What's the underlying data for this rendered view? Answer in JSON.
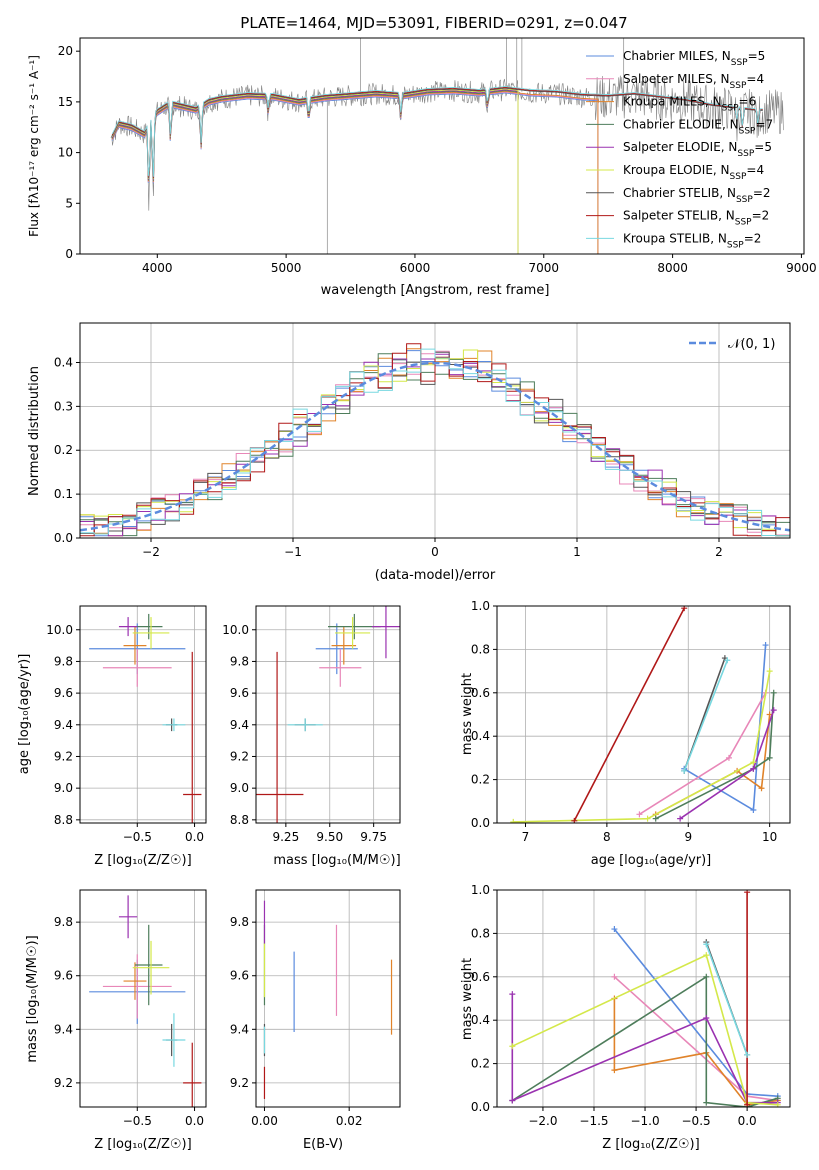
{
  "figure_title": "PLATE=1464, MJD=53091, FIBERID=0291, z=0.047",
  "colors": {
    "Chabrier MILES": "#5b8bde",
    "Salpeter MILES": "#e887b8",
    "Kroupa MILES": "#e0832a",
    "Chabrier ELODIE": "#4e7d5b",
    "Salpeter ELODIE": "#9a32b0",
    "Kroupa ELODIE": "#d4e84a",
    "Chabrier STELIB": "#555555",
    "Salpeter STELIB": "#b01818",
    "Kroupa STELIB": "#78d8e0",
    "observed": "#808080"
  },
  "chart_data": [
    {
      "type": "line",
      "xlabel": "wavelength [Angstrom, rest frame]",
      "ylabel": "Flux [fλ10⁻¹⁷ erg cm⁻² s⁻¹ A⁻¹]",
      "xlim": [
        3400,
        9020
      ],
      "ylim": [
        0,
        21.3
      ],
      "xticks": [
        "4000",
        "5000",
        "6000",
        "7000",
        "8000",
        "9000"
      ],
      "yticks": [
        "0",
        "5",
        "10",
        "15",
        "20"
      ],
      "grid": false,
      "legend_position": "right",
      "series": [
        {
          "name": "Chabrier MILES, N_SSP=5",
          "label_main": "Chabrier MILES, N",
          "label_sub": "SSP",
          "label_tail": "=5",
          "color": "#5b8bde"
        },
        {
          "name": "Salpeter MILES, N_SSP=4",
          "label_main": "Salpeter MILES, N",
          "label_sub": "SSP",
          "label_tail": "=4",
          "color": "#e887b8"
        },
        {
          "name": "Kroupa MILES, N_SSP=6",
          "label_main": "Kroupa MILES, N",
          "label_sub": "SSP",
          "label_tail": "=6",
          "color": "#e0832a"
        },
        {
          "name": "Chabrier ELODIE, N_SSP=7",
          "label_main": "Chabrier ELODIE, N",
          "label_sub": "SSP",
          "label_tail": "=7",
          "color": "#4e7d5b"
        },
        {
          "name": "Salpeter ELODIE, N_SSP=5",
          "label_main": "Salpeter ELODIE, N",
          "label_sub": "SSP",
          "label_tail": "=5",
          "color": "#9a32b0"
        },
        {
          "name": "Kroupa ELODIE, N_SSP=4",
          "label_main": "Kroupa ELODIE, N",
          "label_sub": "SSP",
          "label_tail": "=4",
          "color": "#d4e84a"
        },
        {
          "name": "Chabrier STELIB, N_SSP=2",
          "label_main": "Chabrier STELIB, N",
          "label_sub": "SSP",
          "label_tail": "=2",
          "color": "#555555"
        },
        {
          "name": "Salpeter STELIB, N_SSP=2",
          "label_main": "Salpeter STELIB, N",
          "label_sub": "SSP",
          "label_tail": "=2",
          "color": "#b01818"
        },
        {
          "name": "Kroupa STELIB, N_SSP=2",
          "label_main": "Kroupa STELIB, N",
          "label_sub": "SSP",
          "label_tail": "=2",
          "color": "#78d8e0"
        }
      ],
      "continuum": {
        "x": [
          3650,
          3700,
          3800,
          3900,
          4000,
          4100,
          4200,
          4300,
          4400,
          4500,
          4700,
          4900,
          5100,
          5300,
          5500,
          5700,
          5900,
          6100,
          6300,
          6500,
          6700,
          6900,
          7100,
          7300,
          7500,
          7700,
          7900,
          8100,
          8300,
          8500,
          8650
        ],
        "y": [
          11.5,
          12.8,
          12.5,
          11.8,
          14.0,
          14.8,
          14.5,
          14.2,
          15.0,
          15.3,
          15.6,
          15.5,
          15.0,
          15.4,
          15.6,
          15.8,
          15.6,
          16.0,
          16.1,
          15.9,
          16.2,
          15.9,
          15.8,
          15.5,
          15.4,
          15.6,
          15.3,
          15.0,
          14.5,
          14.2,
          14.0
        ]
      },
      "model_ends": {
        "MILES": 7420,
        "ELODIE": 6800,
        "STELIB": 8700
      },
      "absorption_lines": [
        {
          "x": 3934,
          "y": 4.5
        },
        {
          "x": 3968,
          "y": 5.5
        },
        {
          "x": 4102,
          "y": 10.5
        },
        {
          "x": 4340,
          "y": 10.2
        },
        {
          "x": 4861,
          "y": 13.8
        },
        {
          "x": 5175,
          "y": 12.8
        },
        {
          "x": 5890,
          "y": 13.4
        },
        {
          "x": 6563,
          "y": 14.2
        },
        {
          "x": 8498,
          "y": 12.5
        },
        {
          "x": 8542,
          "y": 11.8
        },
        {
          "x": 8662,
          "y": 12.0
        }
      ]
    },
    {
      "type": "histogram",
      "xlabel": "(data-model)/error",
      "ylabel": "Normed distribution",
      "xlim": [
        -2.5,
        2.5
      ],
      "ylim": [
        0,
        0.49
      ],
      "xticks": [
        "−2",
        "−1",
        "0",
        "1",
        "2"
      ],
      "yticks": [
        "0.0",
        "0.1",
        "0.2",
        "0.3",
        "0.4"
      ],
      "grid": true,
      "legend_label": "𝒩(0, 1)",
      "reference_curve": "standard normal density",
      "bin_width": 0.1,
      "series": [
        {
          "name": "Chabrier MILES",
          "color": "#5b8bde"
        },
        {
          "name": "Salpeter MILES",
          "color": "#e887b8"
        },
        {
          "name": "Kroupa MILES",
          "color": "#e0832a"
        },
        {
          "name": "Chabrier ELODIE",
          "color": "#4e7d5b"
        },
        {
          "name": "Salpeter ELODIE",
          "color": "#9a32b0"
        },
        {
          "name": "Kroupa ELODIE",
          "color": "#d4e84a"
        },
        {
          "name": "Chabrier STELIB",
          "color": "#555555"
        },
        {
          "name": "Salpeter STELIB",
          "color": "#b01818"
        },
        {
          "name": "Kroupa STELIB",
          "color": "#78d8e0"
        }
      ]
    },
    {
      "type": "errorbar",
      "xlabel": "Z [log₁₀(Z/Z☉)]",
      "ylabel": "age  [log₁₀(age/yr)]",
      "xlim": [
        -1.0,
        0.1
      ],
      "ylim": [
        8.78,
        10.15
      ],
      "xticks": [
        "−0.5",
        "0.0"
      ],
      "yticks": [
        "8.8",
        "9.0",
        "9.2",
        "9.4",
        "9.6",
        "9.8",
        "10.0"
      ],
      "grid": true,
      "points": [
        {
          "color": "#5b8bde",
          "x": -0.5,
          "y": 9.88,
          "xerr": 0.42,
          "yerr": 0.16
        },
        {
          "color": "#e887b8",
          "x": -0.5,
          "y": 9.76,
          "xerr": 0.3,
          "yerr": 0.12
        },
        {
          "color": "#e0832a",
          "x": -0.52,
          "y": 9.9,
          "xerr": 0.1,
          "yerr": 0.12
        },
        {
          "color": "#4e7d5b",
          "x": -0.4,
          "y": 10.02,
          "xerr": 0.12,
          "yerr": 0.08
        },
        {
          "color": "#9a32b0",
          "x": -0.58,
          "y": 10.02,
          "xerr": 0.08,
          "yerr": 0.06
        },
        {
          "color": "#d4e84a",
          "x": -0.38,
          "y": 9.98,
          "xerr": 0.16,
          "yerr": 0.1
        },
        {
          "color": "#555555",
          "x": -0.2,
          "y": 9.4,
          "xerr": 0.05,
          "yerr": 0.04
        },
        {
          "color": "#b01818",
          "x": -0.02,
          "y": 8.96,
          "xerr": 0.08,
          "yerr": 0.9
        },
        {
          "color": "#78d8e0",
          "x": -0.18,
          "y": 9.4,
          "xerr": 0.1,
          "yerr": 0.04
        }
      ]
    },
    {
      "type": "errorbar",
      "xlabel": "mass [log₁₀(M/M☉)]",
      "ylabel": "",
      "xlim": [
        9.08,
        9.9
      ],
      "ylim": [
        8.78,
        10.15
      ],
      "xticks": [
        "9.25",
        "9.50",
        "9.75"
      ],
      "yticks": [
        "8.8",
        "9.0",
        "9.2",
        "9.4",
        "9.6",
        "9.8",
        "10.0"
      ],
      "grid": true,
      "points": [
        {
          "color": "#5b8bde",
          "x": 9.54,
          "y": 9.88,
          "xerr": 0.12,
          "yerr": 0.16
        },
        {
          "color": "#e887b8",
          "x": 9.56,
          "y": 9.76,
          "xerr": 0.12,
          "yerr": 0.12
        },
        {
          "color": "#e0832a",
          "x": 9.58,
          "y": 9.9,
          "xerr": 0.07,
          "yerr": 0.12
        },
        {
          "color": "#4e7d5b",
          "x": 9.64,
          "y": 10.02,
          "xerr": 0.15,
          "yerr": 0.08
        },
        {
          "color": "#9a32b0",
          "x": 9.82,
          "y": 10.02,
          "xerr": 0.08,
          "yerr": 0.2
        },
        {
          "color": "#d4e84a",
          "x": 9.63,
          "y": 9.98,
          "xerr": 0.1,
          "yerr": 0.1
        },
        {
          "color": "#555555",
          "x": 9.36,
          "y": 9.4,
          "xerr": 0.06,
          "yerr": 0.04
        },
        {
          "color": "#b01818",
          "x": 9.2,
          "y": 8.96,
          "xerr": 0.15,
          "yerr": 0.9
        },
        {
          "color": "#78d8e0",
          "x": 9.36,
          "y": 9.4,
          "xerr": 0.1,
          "yerr": 0.04
        }
      ]
    },
    {
      "type": "line",
      "xlabel": "age  [log₁₀(age/yr)]",
      "ylabel": "mass weight",
      "xlim": [
        6.65,
        10.25
      ],
      "ylim": [
        0,
        1.0
      ],
      "xticks": [
        "7",
        "8",
        "9",
        "10"
      ],
      "yticks": [
        "0.0",
        "0.2",
        "0.4",
        "0.6",
        "0.8",
        "1.0"
      ],
      "grid": true,
      "series": [
        {
          "color": "#5b8bde",
          "x": [
            8.95,
            9.8,
            9.95
          ],
          "y": [
            0.25,
            0.06,
            0.82
          ]
        },
        {
          "color": "#e887b8",
          "x": [
            8.4,
            9.5,
            9.95
          ],
          "y": [
            0.04,
            0.3,
            0.6
          ]
        },
        {
          "color": "#e0832a",
          "x": [
            8.6,
            9.6,
            9.9,
            10.0
          ],
          "y": [
            0.04,
            0.24,
            0.16,
            0.5
          ]
        },
        {
          "color": "#4e7d5b",
          "x": [
            8.6,
            9.8,
            10.0,
            10.05
          ],
          "y": [
            0.02,
            0.25,
            0.3,
            0.6
          ]
        },
        {
          "color": "#9a32b0",
          "x": [
            8.9,
            9.8,
            10.05
          ],
          "y": [
            0.02,
            0.25,
            0.52
          ]
        },
        {
          "color": "#d4e84a",
          "x": [
            6.85,
            8.5,
            9.8,
            10.0
          ],
          "y": [
            0.005,
            0.02,
            0.28,
            0.7
          ]
        },
        {
          "color": "#555555",
          "x": [
            8.95,
            9.45
          ],
          "y": [
            0.24,
            0.76
          ]
        },
        {
          "color": "#b01818",
          "x": [
            7.6,
            8.95
          ],
          "y": [
            0.01,
            0.99
          ]
        },
        {
          "color": "#78d8e0",
          "x": [
            8.95,
            9.48
          ],
          "y": [
            0.24,
            0.75
          ]
        }
      ]
    },
    {
      "type": "errorbar",
      "xlabel": "Z [log₁₀(Z/Z☉)]",
      "ylabel": "mass [log₁₀(M/M☉)]",
      "xlim": [
        -1.0,
        0.1
      ],
      "ylim": [
        9.11,
        9.92
      ],
      "xticks": [
        "−0.5",
        "0.0"
      ],
      "yticks": [
        "9.2",
        "9.4",
        "9.6",
        "9.8"
      ],
      "grid": true,
      "points": [
        {
          "color": "#5b8bde",
          "x": -0.5,
          "y": 9.54,
          "xerr": 0.42,
          "yerr": 0.12
        },
        {
          "color": "#e887b8",
          "x": -0.5,
          "y": 9.56,
          "xerr": 0.3,
          "yerr": 0.12
        },
        {
          "color": "#e0832a",
          "x": -0.52,
          "y": 9.58,
          "xerr": 0.1,
          "yerr": 0.07
        },
        {
          "color": "#4e7d5b",
          "x": -0.4,
          "y": 9.64,
          "xerr": 0.12,
          "yerr": 0.15
        },
        {
          "color": "#9a32b0",
          "x": -0.58,
          "y": 9.82,
          "xerr": 0.08,
          "yerr": 0.08
        },
        {
          "color": "#d4e84a",
          "x": -0.38,
          "y": 9.63,
          "xerr": 0.16,
          "yerr": 0.1
        },
        {
          "color": "#555555",
          "x": -0.2,
          "y": 9.36,
          "xerr": 0.05,
          "yerr": 0.06
        },
        {
          "color": "#b01818",
          "x": -0.02,
          "y": 9.2,
          "xerr": 0.08,
          "yerr": 0.15
        },
        {
          "color": "#78d8e0",
          "x": -0.18,
          "y": 9.36,
          "xerr": 0.1,
          "yerr": 0.1
        }
      ]
    },
    {
      "type": "errorbar",
      "xlabel": "E(B-V)",
      "ylabel": "",
      "xlim": [
        -0.002,
        0.032
      ],
      "ylim": [
        9.11,
        9.92
      ],
      "xticks": [
        "0.00",
        "0.02"
      ],
      "yticks": [
        "9.2",
        "9.4",
        "9.6",
        "9.8"
      ],
      "grid": true,
      "points": [
        {
          "color": "#5b8bde",
          "x": 0.007,
          "y": 9.54,
          "xerr": 0,
          "yerr": 0.15
        },
        {
          "color": "#e887b8",
          "x": 0.017,
          "y": 9.62,
          "xerr": 0,
          "yerr": 0.17
        },
        {
          "color": "#e0832a",
          "x": 0.03,
          "y": 9.52,
          "xerr": 0,
          "yerr": 0.14
        },
        {
          "color": "#4e7d5b",
          "x": 0.0,
          "y": 9.64,
          "xerr": 0,
          "yerr": 0.15
        },
        {
          "color": "#9a32b0",
          "x": 0.0,
          "y": 9.8,
          "xerr": 0,
          "yerr": 0.08
        },
        {
          "color": "#d4e84a",
          "x": 0.0,
          "y": 9.62,
          "xerr": 0,
          "yerr": 0.1
        },
        {
          "color": "#555555",
          "x": 0.0,
          "y": 9.36,
          "xerr": 0,
          "yerr": 0.06
        },
        {
          "color": "#b01818",
          "x": 0.0,
          "y": 9.2,
          "xerr": 0,
          "yerr": 0.06
        },
        {
          "color": "#78d8e0",
          "x": 0.0,
          "y": 9.36,
          "xerr": 0,
          "yerr": 0.05
        }
      ]
    },
    {
      "type": "line",
      "xlabel": "Z [log₁₀(Z/Z☉)]",
      "ylabel": "mass weight",
      "xlim": [
        -2.45,
        0.42
      ],
      "ylim": [
        0,
        1.0
      ],
      "xticks": [
        "−2.0",
        "−1.5",
        "−1.0",
        "−0.5",
        "0.0"
      ],
      "yticks": [
        "0.0",
        "0.2",
        "0.4",
        "0.6",
        "0.8",
        "1.0"
      ],
      "grid": true,
      "series": [
        {
          "color": "#5b8bde",
          "x": [
            -1.3,
            0.0,
            0.3
          ],
          "y": [
            0.82,
            0.06,
            0.05
          ]
        },
        {
          "color": "#e887b8",
          "x": [
            -1.3,
            0.0,
            0.3
          ],
          "y": [
            0.6,
            0.05,
            0.03
          ]
        },
        {
          "color": "#e0832a",
          "x": [
            -1.3,
            -1.3,
            -0.4,
            0.0,
            0.3
          ],
          "y": [
            0.5,
            0.17,
            0.25,
            0.01,
            0.03
          ]
        },
        {
          "color": "#4e7d5b",
          "x": [
            -2.3,
            -0.4,
            -0.4,
            0.0,
            0.3
          ],
          "y": [
            0.03,
            0.6,
            0.02,
            0.0,
            0.04
          ]
        },
        {
          "color": "#9a32b0",
          "x": [
            -2.3,
            -2.3,
            -0.4,
            0.0,
            0.3
          ],
          "y": [
            0.52,
            0.03,
            0.41,
            0.02,
            0.02
          ]
        },
        {
          "color": "#d4e84a",
          "x": [
            -2.3,
            -0.4,
            0.0,
            0.3
          ],
          "y": [
            0.28,
            0.7,
            0.02,
            0.01
          ]
        },
        {
          "color": "#555555",
          "x": [
            -0.4,
            0.0
          ],
          "y": [
            0.76,
            0.24
          ]
        },
        {
          "color": "#b01818",
          "x": [
            0.0,
            0.0
          ],
          "y": [
            0.99,
            0.01
          ]
        },
        {
          "color": "#78d8e0",
          "x": [
            -0.4,
            0.0
          ],
          "y": [
            0.75,
            0.24
          ]
        }
      ]
    }
  ]
}
